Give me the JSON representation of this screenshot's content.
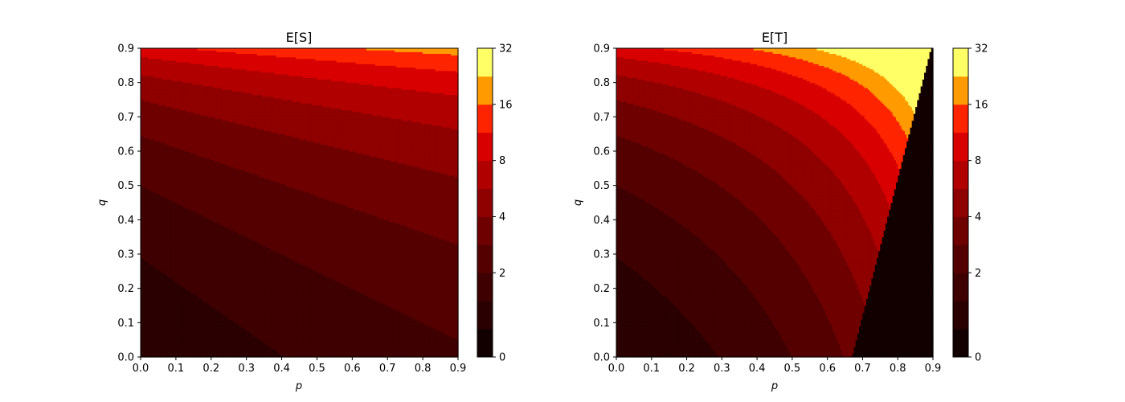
{
  "chart_data": [
    {
      "type": "heatmap",
      "subtype": "filled-contour",
      "title": "E[S]",
      "xlabel": "p",
      "ylabel": "q",
      "xlim": [
        0,
        0.9
      ],
      "ylim": [
        0,
        0.9
      ],
      "xticks": [
        "0.0",
        "0.1",
        "0.2",
        "0.3",
        "0.4",
        "0.5",
        "0.6",
        "0.7",
        "0.8",
        "0.9"
      ],
      "yticks": [
        "0.0",
        "0.1",
        "0.2",
        "0.3",
        "0.4",
        "0.5",
        "0.6",
        "0.7",
        "0.8",
        "0.9"
      ],
      "function": "(1+p)/(1-q)",
      "colorbar": {
        "levels": [
          0,
          1,
          1.41,
          2,
          2.83,
          4,
          5.66,
          8,
          11.3,
          16,
          22.6,
          32
        ],
        "tick_labels": [
          "0",
          "2",
          "4",
          "8",
          "16",
          "32"
        ],
        "tick_values": [
          0,
          2,
          4,
          8,
          16,
          32
        ],
        "colormap": "hot",
        "colors": [
          "#120000",
          "#2a0000",
          "#3e0000",
          "#550000",
          "#6f0000",
          "#8f0000",
          "#b00000",
          "#d80000",
          "#ff2400",
          "#ff9a00",
          "#ffff66"
        ]
      }
    },
    {
      "type": "heatmap",
      "subtype": "filled-contour",
      "title": "E[T]",
      "xlabel": "p",
      "ylabel": "q",
      "xlim": [
        0,
        0.9
      ],
      "ylim": [
        0,
        0.9
      ],
      "xticks": [
        "0.0",
        "0.1",
        "0.2",
        "0.3",
        "0.4",
        "0.5",
        "0.6",
        "0.7",
        "0.8",
        "0.9"
      ],
      "yticks": [
        "0.0",
        "0.1",
        "0.2",
        "0.3",
        "0.4",
        "0.5",
        "0.6",
        "0.7",
        "0.8",
        "0.9"
      ],
      "function": "1/((1-p)(1-q)) when p < 0.67+0.25q, else below 1",
      "colorbar": {
        "levels": [
          0,
          1,
          1.41,
          2,
          2.83,
          4,
          5.66,
          8,
          11.3,
          16,
          22.6,
          32
        ],
        "tick_labels": [
          "0",
          "2",
          "4",
          "8",
          "16",
          "32"
        ],
        "tick_values": [
          0,
          2,
          4,
          8,
          16,
          32
        ],
        "colormap": "hot",
        "colors": [
          "#120000",
          "#2a0000",
          "#3e0000",
          "#550000",
          "#6f0000",
          "#8f0000",
          "#b00000",
          "#d80000",
          "#ff2400",
          "#ff9a00",
          "#ffff66"
        ]
      }
    }
  ]
}
